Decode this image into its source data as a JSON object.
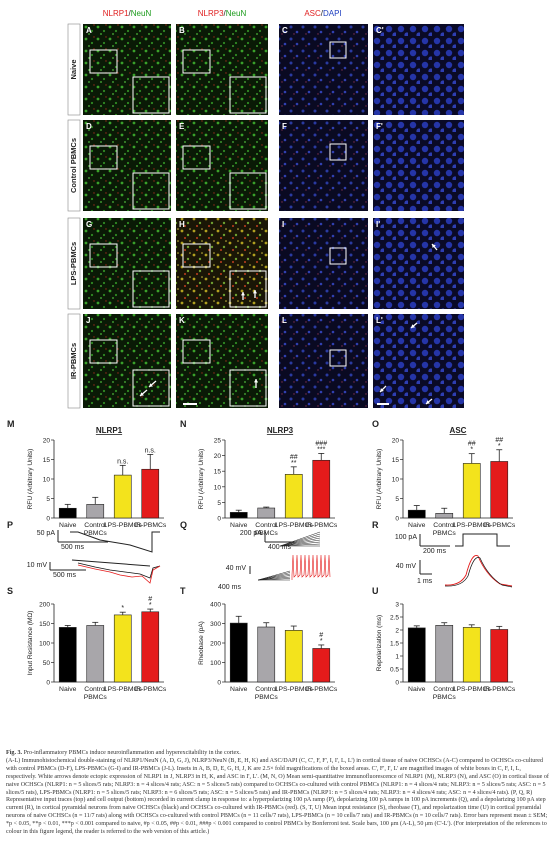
{
  "columns": [
    {
      "parts": [
        {
          "t": "NLRP1",
          "c": "#e02020"
        },
        {
          "t": "/",
          "c": "#222"
        },
        {
          "t": "NeuN",
          "c": "#1a9a1a"
        }
      ]
    },
    {
      "parts": [
        {
          "t": "NLRP3",
          "c": "#e02020"
        },
        {
          "t": "/",
          "c": "#222"
        },
        {
          "t": "NeuN",
          "c": "#1a9a1a"
        }
      ]
    },
    {
      "parts": [
        {
          "t": "ASC",
          "c": "#e02020"
        },
        {
          "t": "/",
          "c": "#222"
        },
        {
          "t": "DAPI",
          "c": "#2040c0"
        }
      ]
    }
  ],
  "rows": [
    "Naive",
    "Control PBMCs",
    "LPS-PBMCs",
    "IR-PBMCs"
  ],
  "panel_letters": [
    [
      "A",
      "B",
      "C",
      "C'"
    ],
    [
      "D",
      "E",
      "F",
      "F'"
    ],
    [
      "G",
      "H",
      "I",
      "I'"
    ],
    [
      "J",
      "K",
      "L",
      "L'"
    ]
  ],
  "chart_data": [
    {
      "id": "M",
      "type": "bar",
      "title": "NLRP1",
      "ylabel": "RFU (Arbitrary Units)",
      "ylim": [
        0,
        20
      ],
      "yticks": [
        0,
        5,
        10,
        15,
        20
      ],
      "categories": [
        "Naive",
        "Control PBMCs",
        "LPS-PBMCs",
        "IR-PBMCs"
      ],
      "values": [
        2.5,
        3.5,
        11,
        12.5
      ],
      "errors": [
        1,
        1.8,
        2.5,
        3.8
      ],
      "annotations": [
        [
          "",
          ""
        ],
        [
          "",
          ""
        ],
        [
          "n.s.",
          ""
        ],
        [
          "n.s.",
          ""
        ]
      ]
    },
    {
      "id": "N",
      "type": "bar",
      "title": "NLRP3",
      "ylabel": "RFU (Arbitrary Units)",
      "ylim": [
        0,
        25
      ],
      "yticks": [
        0,
        5,
        10,
        15,
        20,
        25
      ],
      "categories": [
        "Naive",
        "Control PBMCs",
        "LPS-PBMCs",
        "IR-PBMCs"
      ],
      "values": [
        1.8,
        3.2,
        14,
        18.5
      ],
      "errors": [
        0.7,
        0.3,
        2.4,
        2.2
      ],
      "annotations": [
        [
          "",
          ""
        ],
        [
          "",
          ""
        ],
        [
          "##",
          "**"
        ],
        [
          "###",
          "***"
        ]
      ]
    },
    {
      "id": "O",
      "type": "bar",
      "title": "ASC",
      "ylabel": "RFU (Arbitrary Units)",
      "ylim": [
        0,
        20
      ],
      "yticks": [
        0,
        5,
        10,
        15,
        20
      ],
      "categories": [
        "Naive",
        "Control PBMCs",
        "LPS-PBMCs",
        "IR-PBMCs"
      ],
      "values": [
        2,
        1.2,
        14,
        14.5
      ],
      "errors": [
        1.2,
        1.3,
        2.5,
        3
      ],
      "annotations": [
        [
          "",
          ""
        ],
        [
          "",
          ""
        ],
        [
          "##",
          "*"
        ],
        [
          "##",
          "*"
        ]
      ]
    },
    {
      "id": "S",
      "type": "bar",
      "title": "",
      "ylabel": "Input Resistance (MΩ)",
      "ylim": [
        0,
        200
      ],
      "yticks": [
        0,
        50,
        100,
        150,
        200
      ],
      "categories": [
        "Naive",
        "Control PBMCs",
        "LPS-PBMCs",
        "IR-PBMCs"
      ],
      "values": [
        140,
        145,
        172,
        180
      ],
      "errors": [
        5,
        8,
        7,
        7
      ],
      "annotations": [
        [
          "",
          ""
        ],
        [
          "",
          ""
        ],
        [
          "",
          "*"
        ],
        [
          "#",
          "*"
        ]
      ]
    },
    {
      "id": "T",
      "type": "bar",
      "title": "",
      "ylabel": "Rheobase (pA)",
      "ylim": [
        0,
        400
      ],
      "yticks": [
        0,
        100,
        200,
        300,
        400
      ],
      "categories": [
        "Naive",
        "Control PBMCs",
        "LPS-PBMCs",
        "IR-PBMCs"
      ],
      "values": [
        302,
        282,
        265,
        172
      ],
      "errors": [
        35,
        22,
        22,
        18
      ],
      "annotations": [
        [
          "",
          ""
        ],
        [
          "",
          ""
        ],
        [
          "",
          ""
        ],
        [
          "#",
          "*"
        ]
      ]
    },
    {
      "id": "U",
      "type": "bar",
      "title": "",
      "ylabel": "Repolarization (ms)",
      "ylim": [
        0,
        3
      ],
      "yticks": [
        0,
        0.5,
        1,
        1.5,
        2,
        2.5,
        3
      ],
      "categories": [
        "Naive",
        "Control PBMCs",
        "LPS-PBMCs",
        "IR-PBMCs"
      ],
      "values": [
        2.08,
        2.18,
        2.1,
        2.02
      ],
      "errors": [
        0.08,
        0.1,
        0.1,
        0.12
      ],
      "annotations": [
        [
          "",
          ""
        ],
        [
          "",
          ""
        ],
        [
          "",
          ""
        ],
        [
          "",
          ""
        ]
      ]
    }
  ],
  "bar_colors": [
    "#000000",
    "#a8a6aa",
    "#f3e31c",
    "#e41b1b"
  ],
  "traces": [
    {
      "id": "P",
      "scale1": "50 pA",
      "scale2": "500 ms",
      "scale3": "10 mV",
      "scale4": "500 ms"
    },
    {
      "id": "Q",
      "scale1": "200 pA",
      "scale2": "400 ms",
      "scale3": "40 mV",
      "scale4": "400 ms"
    },
    {
      "id": "R",
      "scale1": "100 pA",
      "scale2": "200 ms",
      "scale3": "40 mV",
      "scale4": "1 ms"
    }
  ],
  "caption": {
    "title": "Fig. 3.",
    "title_rest": " Pro-inflammatory PBMCs induce neuroinflammation and hyperexcitability in the cortex.",
    "body": "(A-L) Immunohistochemical double-staining of NLRP1/NeuN (A, D, G, J), NLRP3/NeuN (B, E, H, K) and ASC/DAPI (C, C', F, F', I, I', L, L') in cortical tissue of naive OCHSCs (A-C) compared to OCHSCs co-cultured with control PBMCs (D-F), LPS-PBMCs (G-I) and IR-PBMCs (J-L). Insets in A, B, D, E, G, H, J, K are 2.5× fold magnifications of the boxed areas. C', F', I', L' are magnified images of white boxes in C, F, I, L, respectively. White arrows denote ectopic expression of NLRP1 in J, NLRP3 in H, K, and ASC in I', L'. (M, N, O) Mean semi-quantitative immunofluorescence of NLRP1 (M), NLRP3 (N), and ASC (O) in cortical tissue of naive OCHSCs (NLRP1: n = 5 slices/5 rats; NLRP3: n = 4 slices/4 rats; ASC: n = 5 slices/5 rats) compared to OCHSCs co-cultured with control PBMCs (NLRP1: n = 4 slices/4 rats; NLRP3: n = 5 slices/5 rats; ASC: n = 5 slices/5 rats), LPS-PBMCs (NLRP1: n = 5 slices/5 rats; NLRP3: n = 6 slices/5 rats; ASC: n = 5 slices/5 rats) and IR-PBMCs (NLRP1: n = 5 slices/4 rats; NLRP3: n = 4 slices/4 rats; ASC: n = 4 slices/4 rats). (P, Q, R) Representative input traces (top) and cell output (bottom) recorded in current clamp in response to: a hyperpolarizing 100 pA ramp (P), depolarizing 100 pA ramps in 100 pA increments (Q), and a depolarizing 100 pA step current (R), in cortical pyramidal neurons from naive OCHSCs (black) and OCHSCs co-cultured with IR-PBMCs (red). (S, T, U) Mean input resistance (S), rheobase (T), and repolarization time (U) in cortical pyramidal neurons of naive OCHSCs (n = 11/7 rats) along with OCHSCs co-cultured with control PBMCs (n = 11 cells/7 rats), LPS-PBMCs (n = 10 cells/7 rats) and IR-PBMCs (n = 10 cells/7 rats). Error bars represent mean ± SEM; *p < 0.05, **p < 0.01, ***p < 0.001 compared to naive, #p < 0.05, ##p < 0.01, ###p < 0.001 compared to control PBMCs by Bonferroni test. Scale bars, 100 μm (A-L), 50 μm (C'-L'). (For interpretation of the references to colour in this figure legend, the reader is referred to the web version of this article.)"
  }
}
